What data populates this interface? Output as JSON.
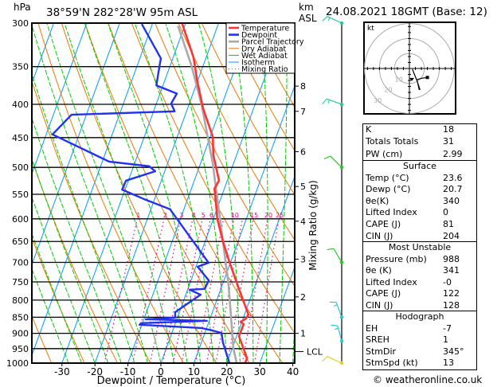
{
  "header": {
    "pressure_unit": "hPa",
    "location": "38°59'N 282°28'W 95m ASL",
    "km_label": "km",
    "asl_label": "ASL",
    "datetime": "24.08.2021 18GMT (Base: 12)"
  },
  "colors": {
    "temperature": "#ff3333",
    "dewpoint": "#2233ee",
    "parcel": "#aaaaaa",
    "dry_adiabat": "#ee7700",
    "wet_adiabat": "#00cc00",
    "isotherm": "#0099ff",
    "mixing_ratio": "#ee0088"
  },
  "legend": [
    {
      "label": "Temperature",
      "color": "#ff3333",
      "style": "thick"
    },
    {
      "label": "Dewpoint",
      "color": "#2233ee",
      "style": "thick"
    },
    {
      "label": "Parcel Trajectory",
      "color": "#aaaaaa",
      "style": "thick"
    },
    {
      "label": "Dry Adiabat",
      "color": "#ee7700",
      "style": "thin"
    },
    {
      "label": "Wet Adiabat",
      "color": "#00cc00",
      "style": "thin"
    },
    {
      "label": "Isotherm",
      "color": "#0099ff",
      "style": "thin"
    },
    {
      "label": "Mixing Ratio",
      "color": "#ee0088",
      "style": "dotted"
    }
  ],
  "chart_data": {
    "type": "line",
    "subtype": "skew-t log-p",
    "title": "38°59'N 282°28'W 95m ASL",
    "xlabel": "Dewpoint / Temperature (°C)",
    "ylabel": "hPa",
    "right_axis_label": "km ASL",
    "mixing_axis_label": "Mixing Ratio (g/kg)",
    "xlim": [
      -40,
      40
    ],
    "ylim": [
      1000,
      300
    ],
    "x_ticks": [
      -30,
      -20,
      -10,
      0,
      10,
      20,
      30,
      40
    ],
    "pressure_levels": [
      300,
      350,
      400,
      450,
      500,
      550,
      600,
      650,
      700,
      750,
      800,
      850,
      900,
      950,
      1000
    ],
    "km_ticks": [
      {
        "label": "8",
        "p": 375
      },
      {
        "label": "7",
        "p": 410
      },
      {
        "label": "6",
        "p": 473
      },
      {
        "label": "5",
        "p": 535
      },
      {
        "label": "4",
        "p": 605
      },
      {
        "label": "3",
        "p": 692
      },
      {
        "label": "2",
        "p": 791
      },
      {
        "label": "1",
        "p": 900
      },
      {
        "label": "LCL",
        "p": 960
      }
    ],
    "mixing_ratio_labels": [
      1,
      2,
      3,
      4,
      5,
      6,
      10,
      15,
      20,
      25
    ],
    "series": [
      {
        "name": "Temperature",
        "points": [
          [
            300,
            -31.1
          ],
          [
            339,
            -23.8
          ],
          [
            369,
            -20.0
          ],
          [
            405,
            -15.4
          ],
          [
            449,
            -9.2
          ],
          [
            479,
            -7.0
          ],
          [
            524,
            -2.5
          ],
          [
            539,
            -3.0
          ],
          [
            583,
            0.1
          ],
          [
            600,
            1.2
          ],
          [
            650,
            5.4
          ],
          [
            700,
            9.7
          ],
          [
            769,
            15.5
          ],
          [
            812,
            18.9
          ],
          [
            842,
            21.2
          ],
          [
            854,
            20.9
          ],
          [
            864,
            19.6
          ],
          [
            871,
            20.8
          ],
          [
            909,
            20.7
          ],
          [
            983,
            25.6
          ],
          [
            1000,
            25.5
          ]
        ]
      },
      {
        "name": "Dewpoint",
        "points": [
          [
            301,
            -43.2
          ],
          [
            340,
            -33.6
          ],
          [
            349,
            -33.2
          ],
          [
            374,
            -32.0
          ],
          [
            385,
            -24.9
          ],
          [
            399,
            -25.5
          ],
          [
            410,
            -23.6
          ],
          [
            415,
            -54.5
          ],
          [
            445,
            -58.1
          ],
          [
            490,
            -37.9
          ],
          [
            498,
            -25.3
          ],
          [
            507,
            -22.9
          ],
          [
            524,
            -30.7
          ],
          [
            541,
            -30.9
          ],
          [
            559,
            -23.4
          ],
          [
            580,
            -14.2
          ],
          [
            701,
            3.4
          ],
          [
            711,
            0.5
          ],
          [
            746,
            5.4
          ],
          [
            769,
            5.1
          ],
          [
            771,
            0.6
          ],
          [
            785,
            4.5
          ],
          [
            835,
            -1.3
          ],
          [
            851,
            -0.7
          ],
          [
            856,
            -9.4
          ],
          [
            861,
            9.3
          ],
          [
            868,
            -10.4
          ],
          [
            873,
            -10.7
          ],
          [
            883,
            8.4
          ],
          [
            891,
            12.1
          ],
          [
            899,
            15.1
          ],
          [
            929,
            16.5
          ],
          [
            1000,
            20.8
          ]
        ]
      },
      {
        "name": "Parcel Trajectory",
        "points": [
          [
            303,
            -32.0
          ],
          [
            349,
            -23.5
          ],
          [
            401,
            -16.1
          ],
          [
            493,
            -6.3
          ],
          [
            583,
            0.8
          ],
          [
            650,
            5.4
          ],
          [
            756,
            11.8
          ],
          [
            854,
            16.4
          ],
          [
            948,
            20.3
          ],
          [
            1000,
            23.0
          ]
        ]
      }
    ],
    "winds": [
      {
        "p": 300,
        "dir": 295,
        "kt": 15,
        "color": "#22cc99"
      },
      {
        "p": 400,
        "dir": 290,
        "kt": 15,
        "color": "#22cc99"
      },
      {
        "p": 500,
        "dir": 315,
        "kt": 10,
        "color": "#22cc22"
      },
      {
        "p": 700,
        "dir": 330,
        "kt": 10,
        "color": "#22cc22"
      },
      {
        "p": 850,
        "dir": 340,
        "kt": 15,
        "color": "#22c8d8"
      },
      {
        "p": 925,
        "dir": 345,
        "kt": 15,
        "color": "#22c8d8"
      },
      {
        "p": 1000,
        "dir": 295,
        "kt": 10,
        "color": "#e0d030"
      }
    ],
    "hodograph": {
      "unit": "kt",
      "rings": [
        10,
        20,
        30
      ],
      "trace_uv": [
        [
          2,
          -0.5
        ],
        [
          3,
          -3
        ],
        [
          5,
          -8
        ],
        [
          7,
          -14
        ],
        [
          6.5,
          -14
        ],
        [
          5,
          -7.5
        ],
        [
          8.5,
          -6.5
        ],
        [
          12,
          -6
        ]
      ],
      "storm_uv": [
        1.6,
        -7.4
      ]
    }
  },
  "indices": [
    {
      "label": "K",
      "value": "18"
    },
    {
      "label": "Totals Totals",
      "value": "31"
    },
    {
      "label": "PW (cm)",
      "value": "2.99"
    }
  ],
  "surface": {
    "title": "Surface",
    "rows": [
      {
        "label": "Temp (°C)",
        "value": "23.6"
      },
      {
        "label": "Dewp (°C)",
        "value": "20.7"
      },
      {
        "label": "θe(K)",
        "value": "340"
      },
      {
        "label": "Lifted Index",
        "value": "0"
      },
      {
        "label": "CAPE (J)",
        "value": "81"
      },
      {
        "label": "CIN (J)",
        "value": "204"
      }
    ]
  },
  "most_unstable": {
    "title": "Most Unstable",
    "rows": [
      {
        "label": "Pressure (mb)",
        "value": "988"
      },
      {
        "label": "θe (K)",
        "value": "341"
      },
      {
        "label": "Lifted Index",
        "value": "-0"
      },
      {
        "label": "CAPE (J)",
        "value": "122"
      },
      {
        "label": "CIN (J)",
        "value": "128"
      }
    ]
  },
  "hodograph_box": {
    "title": "Hodograph",
    "rows": [
      {
        "label": "EH",
        "value": "-7"
      },
      {
        "label": "SREH",
        "value": "1"
      },
      {
        "label": "StmDir",
        "value": "345°"
      },
      {
        "label": "StmSpd (kt)",
        "value": "13"
      }
    ]
  },
  "footer": "© weatheronline.co.uk"
}
